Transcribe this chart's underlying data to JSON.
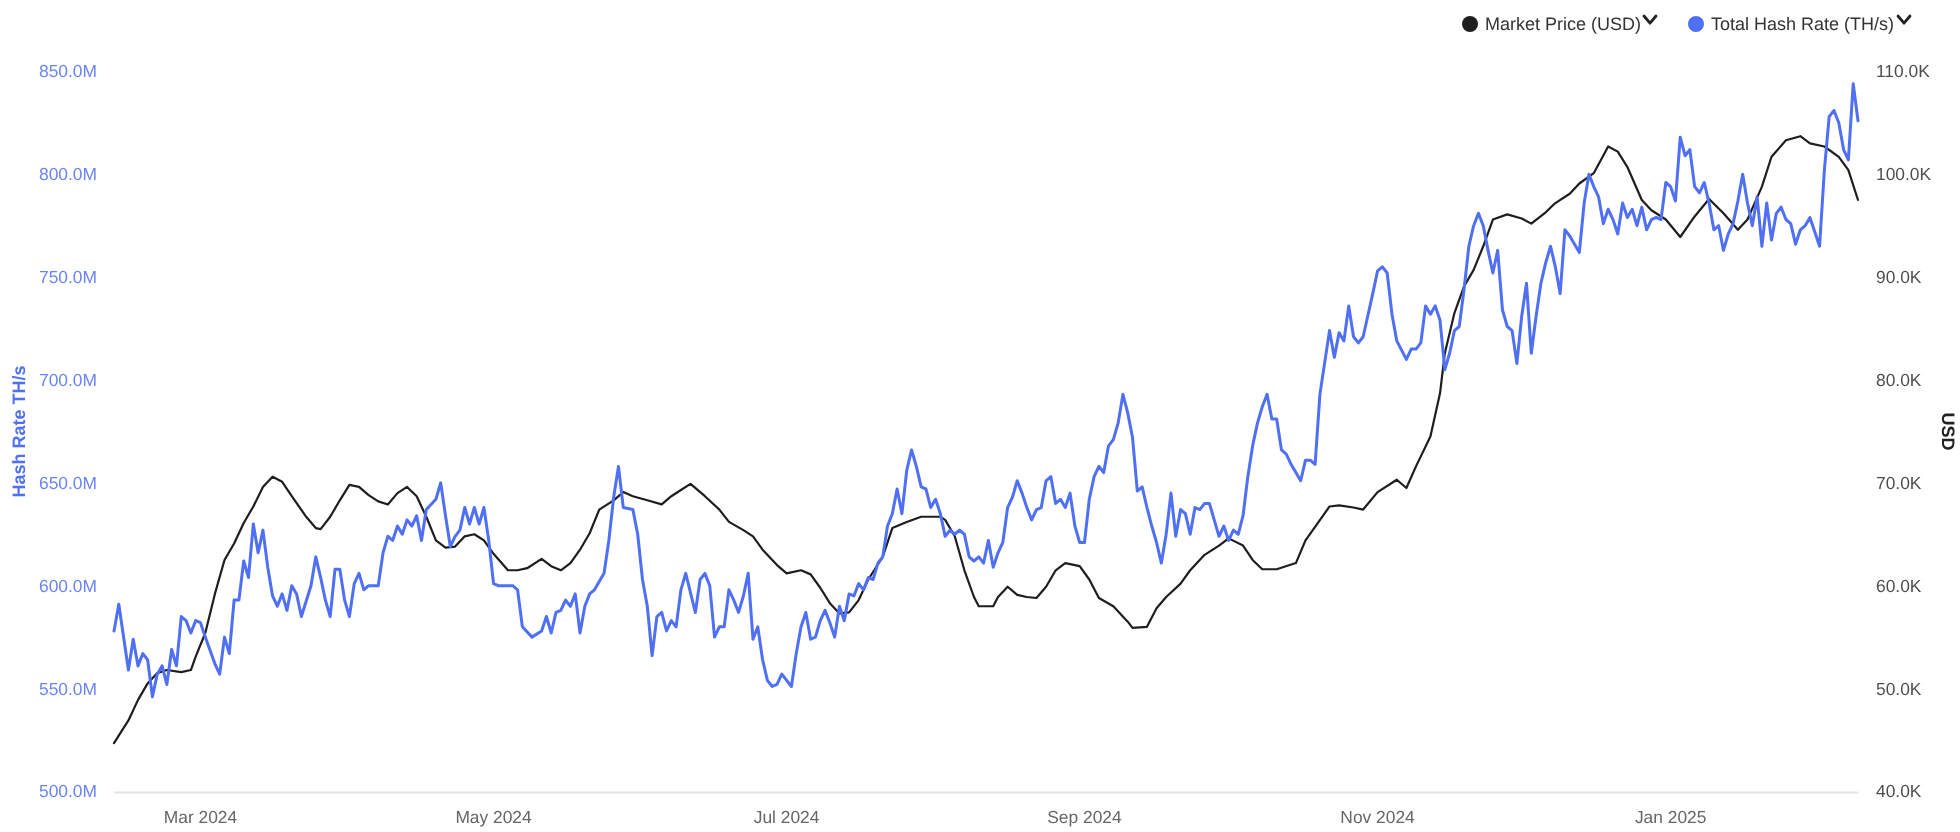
{
  "chart_data": {
    "type": "line",
    "ylabel": "Hash Rate TH/s",
    "y2label": "USD",
    "legend": "top right",
    "xlim": [
      "2024-02-12",
      "2025-02-09"
    ],
    "xticks": [
      {
        "value": "2024-03-01",
        "label": "Mar 2024"
      },
      {
        "value": "2024-05-01",
        "label": "May 2024"
      },
      {
        "value": "2024-07-01",
        "label": "Jul 2024"
      },
      {
        "value": "2024-09-01",
        "label": "Sep 2024"
      },
      {
        "value": "2024-11-01",
        "label": "Nov 2024"
      },
      {
        "value": "2025-01-01",
        "label": "Jan 2025"
      }
    ],
    "ylim": [
      500000000,
      850000000
    ],
    "yticks": [
      {
        "value": 500000000,
        "label": "500.0M"
      },
      {
        "value": 550000000,
        "label": "550.0M"
      },
      {
        "value": 600000000,
        "label": "600.0M"
      },
      {
        "value": 650000000,
        "label": "650.0M"
      },
      {
        "value": 700000000,
        "label": "700.0M"
      },
      {
        "value": 750000000,
        "label": "750.0M"
      },
      {
        "value": 800000000,
        "label": "800.0M"
      },
      {
        "value": 850000000,
        "label": "850.0M"
      }
    ],
    "y2lim": [
      40000,
      110000
    ],
    "y2ticks": [
      {
        "value": 40000,
        "label": "40.0K"
      },
      {
        "value": 50000,
        "label": "50.0K"
      },
      {
        "value": 60000,
        "label": "60.0K"
      },
      {
        "value": 70000,
        "label": "70.0K"
      },
      {
        "value": 80000,
        "label": "80.0K"
      },
      {
        "value": 90000,
        "label": "90.0K"
      },
      {
        "value": 100000,
        "label": "100.0K"
      },
      {
        "value": 110000,
        "label": "110.0K"
      }
    ],
    "series": [
      {
        "name": "Market Price (USD)",
        "color": "#1e1e1e",
        "axis": "y2",
        "x": [
          "2024-02-12",
          "2024-02-15",
          "2024-02-17",
          "2024-02-19",
          "2024-02-21",
          "2024-02-23",
          "2024-02-26",
          "2024-02-28",
          "2024-02-29",
          "2024-03-02",
          "2024-03-04",
          "2024-03-06",
          "2024-03-08",
          "2024-03-10",
          "2024-03-12",
          "2024-03-14",
          "2024-03-16",
          "2024-03-18",
          "2024-03-20",
          "2024-03-23",
          "2024-03-25",
          "2024-03-26",
          "2024-03-28",
          "2024-03-30",
          "2024-04-01",
          "2024-04-03",
          "2024-04-05",
          "2024-04-07",
          "2024-04-09",
          "2024-04-11",
          "2024-04-13",
          "2024-04-15",
          "2024-04-17",
          "2024-04-19",
          "2024-04-21",
          "2024-04-23",
          "2024-04-25",
          "2024-04-27",
          "2024-04-29",
          "2024-05-01",
          "2024-05-04",
          "2024-05-06",
          "2024-05-08",
          "2024-05-11",
          "2024-05-13",
          "2024-05-15",
          "2024-05-17",
          "2024-05-19",
          "2024-05-21",
          "2024-05-23",
          "2024-05-26",
          "2024-05-28",
          "2024-05-30",
          "2024-06-02",
          "2024-06-05",
          "2024-06-07",
          "2024-06-09",
          "2024-06-11",
          "2024-06-14",
          "2024-06-17",
          "2024-06-19",
          "2024-06-22",
          "2024-06-24",
          "2024-06-26",
          "2024-06-29",
          "2024-07-01",
          "2024-07-04",
          "2024-07-06",
          "2024-07-08",
          "2024-07-10",
          "2024-07-12",
          "2024-07-14",
          "2024-07-16",
          "2024-07-18",
          "2024-07-21",
          "2024-07-23",
          "2024-07-26",
          "2024-07-29",
          "2024-08-02",
          "2024-08-03",
          "2024-08-05",
          "2024-08-07",
          "2024-08-09",
          "2024-08-10",
          "2024-08-13",
          "2024-08-14",
          "2024-08-16",
          "2024-08-18",
          "2024-08-20",
          "2024-08-22",
          "2024-08-24",
          "2024-08-26",
          "2024-08-28",
          "2024-08-31",
          "2024-09-02",
          "2024-09-04",
          "2024-09-07",
          "2024-09-10",
          "2024-09-11",
          "2024-09-14",
          "2024-09-16",
          "2024-09-18",
          "2024-09-21",
          "2024-09-23",
          "2024-09-26",
          "2024-09-29",
          "2024-10-01",
          "2024-10-04",
          "2024-10-06",
          "2024-10-08",
          "2024-10-11",
          "2024-10-15",
          "2024-10-17",
          "2024-10-22",
          "2024-10-24",
          "2024-10-27",
          "2024-10-29",
          "2024-11-01",
          "2024-11-05",
          "2024-11-07",
          "2024-11-09",
          "2024-11-12",
          "2024-11-14",
          "2024-11-15",
          "2024-11-17",
          "2024-11-19",
          "2024-11-21",
          "2024-11-23",
          "2024-11-25",
          "2024-11-28",
          "2024-12-01",
          "2024-12-03",
          "2024-12-06",
          "2024-12-08",
          "2024-12-11",
          "2024-12-13",
          "2024-12-16",
          "2024-12-19",
          "2024-12-21",
          "2024-12-23",
          "2024-12-26",
          "2024-12-28",
          "2024-12-31",
          "2025-01-03",
          "2025-01-06",
          "2025-01-09",
          "2025-01-12",
          "2025-01-15",
          "2025-01-17",
          "2025-01-20",
          "2025-01-22",
          "2025-01-25",
          "2025-01-28",
          "2025-01-30",
          "2025-02-02",
          "2025-02-05",
          "2025-02-07",
          "2025-02-09"
        ],
        "values": [
          44700,
          46900,
          48900,
          50500,
          51500,
          51800,
          51600,
          51800,
          53100,
          55400,
          59200,
          62500,
          64100,
          66100,
          67700,
          69600,
          70600,
          70100,
          68700,
          66700,
          65600,
          65500,
          66700,
          68300,
          69800,
          69600,
          68800,
          68200,
          67900,
          69000,
          69600,
          68700,
          66700,
          64400,
          63700,
          63800,
          64800,
          65000,
          64400,
          63100,
          61500,
          61500,
          61700,
          62600,
          61900,
          61500,
          62200,
          63500,
          65100,
          67400,
          68300,
          69100,
          68700,
          68300,
          67900,
          68700,
          69300,
          69900,
          68700,
          67400,
          66200,
          65400,
          64800,
          63500,
          62000,
          61200,
          61500,
          61100,
          59800,
          58300,
          57300,
          57400,
          58600,
          60600,
          62800,
          65600,
          66200,
          66700,
          66700,
          66400,
          64800,
          61500,
          58900,
          58000,
          58000,
          58900,
          59900,
          59100,
          58900,
          58800,
          59900,
          61500,
          62200,
          61900,
          60600,
          58800,
          58000,
          56500,
          55900,
          56000,
          57800,
          58900,
          60200,
          61500,
          63000,
          63900,
          64600,
          63900,
          62500,
          61600,
          61600,
          62200,
          64400,
          67700,
          67800,
          67600,
          67400,
          69100,
          70300,
          69500,
          71600,
          74500,
          78700,
          82600,
          86500,
          89100,
          90700,
          93000,
          95600,
          96100,
          95700,
          95200,
          96300,
          97200,
          98100,
          99100,
          100100,
          102700,
          102200,
          100700,
          97500,
          96500,
          95600,
          93900,
          95900,
          97600,
          96200,
          94600,
          95600,
          98800,
          101700,
          103300,
          103700,
          103000,
          102700,
          101700,
          100400,
          97500
        ]
      },
      {
        "name": "Total Hash Rate (TH/s)",
        "color": "#4f6ff5",
        "x": [
          "2024-02-12",
          "2024-02-13",
          "2024-02-15",
          "2024-02-16",
          "2024-02-17",
          "2024-02-18",
          "2024-02-19",
          "2024-02-20",
          "2024-02-21",
          "2024-02-22",
          "2024-02-23",
          "2024-02-24",
          "2024-02-25",
          "2024-02-26",
          "2024-02-27",
          "2024-02-28",
          "2024-02-29",
          "2024-03-01",
          "2024-03-02",
          "2024-03-04",
          "2024-03-05",
          "2024-03-06",
          "2024-03-07",
          "2024-03-08",
          "2024-03-09",
          "2024-03-10",
          "2024-03-11",
          "2024-03-12",
          "2024-03-13",
          "2024-03-14",
          "2024-03-15",
          "2024-03-16",
          "2024-03-17",
          "2024-03-18",
          "2024-03-19",
          "2024-03-20",
          "2024-03-21",
          "2024-03-22",
          "2024-03-24",
          "2024-03-25",
          "2024-03-26",
          "2024-03-27",
          "2024-03-28",
          "2024-03-29",
          "2024-03-30",
          "2024-03-31",
          "2024-04-01",
          "2024-04-02",
          "2024-04-03",
          "2024-04-04",
          "2024-04-05",
          "2024-04-07",
          "2024-04-08",
          "2024-04-09",
          "2024-04-10",
          "2024-04-11",
          "2024-04-12",
          "2024-04-13",
          "2024-04-14",
          "2024-04-15",
          "2024-04-16",
          "2024-04-17",
          "2024-04-19",
          "2024-04-20",
          "2024-04-21",
          "2024-04-22",
          "2024-04-23",
          "2024-04-24",
          "2024-04-25",
          "2024-04-26",
          "2024-04-27",
          "2024-04-28",
          "2024-04-29",
          "2024-04-30",
          "2024-05-01",
          "2024-05-02",
          "2024-05-05",
          "2024-05-06",
          "2024-05-07",
          "2024-05-09",
          "2024-05-11",
          "2024-05-12",
          "2024-05-13",
          "2024-05-14",
          "2024-05-15",
          "2024-05-16",
          "2024-05-17",
          "2024-05-18",
          "2024-05-19",
          "2024-05-20",
          "2024-05-21",
          "2024-05-22",
          "2024-05-24",
          "2024-05-25",
          "2024-05-26",
          "2024-05-27",
          "2024-05-28",
          "2024-05-30",
          "2024-05-31",
          "2024-06-01",
          "2024-06-02",
          "2024-06-03",
          "2024-06-04",
          "2024-06-05",
          "2024-06-06",
          "2024-06-07",
          "2024-06-08",
          "2024-06-09",
          "2024-06-10",
          "2024-06-12",
          "2024-06-13",
          "2024-06-14",
          "2024-06-15",
          "2024-06-16",
          "2024-06-17",
          "2024-06-18",
          "2024-06-19",
          "2024-06-20",
          "2024-06-21",
          "2024-06-22",
          "2024-06-23",
          "2024-06-24",
          "2024-06-25",
          "2024-06-26",
          "2024-06-27",
          "2024-06-28",
          "2024-06-29",
          "2024-06-30",
          "2024-07-02",
          "2024-07-03",
          "2024-07-04",
          "2024-07-05",
          "2024-07-06",
          "2024-07-07",
          "2024-07-08",
          "2024-07-09",
          "2024-07-10",
          "2024-07-11",
          "2024-07-12",
          "2024-07-13",
          "2024-07-14",
          "2024-07-15",
          "2024-07-16",
          "2024-07-17",
          "2024-07-18",
          "2024-07-19",
          "2024-07-20",
          "2024-07-21",
          "2024-07-22",
          "2024-07-23",
          "2024-07-24",
          "2024-07-25",
          "2024-07-26",
          "2024-07-27",
          "2024-07-28",
          "2024-07-29",
          "2024-07-30",
          "2024-07-31",
          "2024-08-01",
          "2024-08-02",
          "2024-08-03",
          "2024-08-04",
          "2024-08-05",
          "2024-08-06",
          "2024-08-07",
          "2024-08-08",
          "2024-08-09",
          "2024-08-10",
          "2024-08-11",
          "2024-08-12",
          "2024-08-13",
          "2024-08-14",
          "2024-08-15",
          "2024-08-16",
          "2024-08-17",
          "2024-08-18",
          "2024-08-19",
          "2024-08-20",
          "2024-08-21",
          "2024-08-22",
          "2024-08-23",
          "2024-08-24",
          "2024-08-25",
          "2024-08-26",
          "2024-08-27",
          "2024-08-28",
          "2024-08-29",
          "2024-08-30",
          "2024-08-31",
          "2024-09-01",
          "2024-09-02",
          "2024-09-03",
          "2024-09-04",
          "2024-09-05",
          "2024-09-06",
          "2024-09-07",
          "2024-09-08",
          "2024-09-09",
          "2024-09-10",
          "2024-09-11",
          "2024-09-12",
          "2024-09-13",
          "2024-09-14",
          "2024-09-15",
          "2024-09-16",
          "2024-09-17",
          "2024-09-18",
          "2024-09-19",
          "2024-09-20",
          "2024-09-21",
          "2024-09-22",
          "2024-09-23",
          "2024-09-24",
          "2024-09-25",
          "2024-09-26",
          "2024-09-27",
          "2024-09-28",
          "2024-09-29",
          "2024-09-30",
          "2024-10-01",
          "2024-10-02",
          "2024-10-03",
          "2024-10-04",
          "2024-10-05",
          "2024-10-06",
          "2024-10-07",
          "2024-10-08",
          "2024-10-09",
          "2024-10-10",
          "2024-10-11",
          "2024-10-12",
          "2024-10-13",
          "2024-10-14",
          "2024-10-15",
          "2024-10-16",
          "2024-10-17",
          "2024-10-18",
          "2024-10-19",
          "2024-10-20",
          "2024-10-22",
          "2024-10-23",
          "2024-10-24",
          "2024-10-25",
          "2024-10-26",
          "2024-10-27",
          "2024-10-28",
          "2024-10-29",
          "2024-10-31",
          "2024-11-01",
          "2024-11-02",
          "2024-11-03",
          "2024-11-04",
          "2024-11-05",
          "2024-11-07",
          "2024-11-08",
          "2024-11-09",
          "2024-11-10",
          "2024-11-11",
          "2024-11-12",
          "2024-11-13",
          "2024-11-14",
          "2024-11-15",
          "2024-11-16",
          "2024-11-17",
          "2024-11-18",
          "2024-11-19",
          "2024-11-20",
          "2024-11-21",
          "2024-11-22",
          "2024-11-23",
          "2024-11-24",
          "2024-11-25",
          "2024-11-26",
          "2024-11-27",
          "2024-11-28",
          "2024-11-29",
          "2024-11-30",
          "2024-12-01",
          "2024-12-02",
          "2024-12-03",
          "2024-12-04",
          "2024-12-05",
          "2024-12-06",
          "2024-12-07",
          "2024-12-08",
          "2024-12-09",
          "2024-12-10",
          "2024-12-11",
          "2024-12-12",
          "2024-12-13",
          "2024-12-14",
          "2024-12-15",
          "2024-12-16",
          "2024-12-17",
          "2024-12-18",
          "2024-12-19",
          "2024-12-20",
          "2024-12-21",
          "2024-12-22",
          "2024-12-23",
          "2024-12-24",
          "2024-12-25",
          "2024-12-26",
          "2024-12-27",
          "2024-12-28",
          "2024-12-29",
          "2024-12-30",
          "2024-12-31",
          "2025-01-01",
          "2025-01-02",
          "2025-01-03",
          "2025-01-04",
          "2025-01-05",
          "2025-01-06",
          "2025-01-07",
          "2025-01-08",
          "2025-01-09",
          "2025-01-10",
          "2025-01-11",
          "2025-01-12",
          "2025-01-13",
          "2025-01-14",
          "2025-01-15",
          "2025-01-16",
          "2025-01-17",
          "2025-01-18",
          "2025-01-19",
          "2025-01-20",
          "2025-01-21",
          "2025-01-22",
          "2025-01-23",
          "2025-01-24",
          "2025-01-25",
          "2025-01-26",
          "2025-01-27",
          "2025-01-28",
          "2025-01-29",
          "2025-01-30",
          "2025-02-01",
          "2025-02-02",
          "2025-02-03",
          "2025-02-04",
          "2025-02-05",
          "2025-02-06",
          "2025-02-07",
          "2025-02-08",
          "2025-02-09"
        ],
        "values": [
          578000000,
          591000000,
          559000000,
          574000000,
          561000000,
          567000000,
          564000000,
          546000000,
          557000000,
          561000000,
          552000000,
          569000000,
          561000000,
          585000000,
          583000000,
          577000000,
          583000000,
          582000000,
          575000000,
          562000000,
          557000000,
          575000000,
          567000000,
          593000000,
          593000000,
          612000000,
          604000000,
          630000000,
          616000000,
          627000000,
          609000000,
          595000000,
          590000000,
          596000000,
          588000000,
          600000000,
          596000000,
          585000000,
          600000000,
          614000000,
          604000000,
          593000000,
          585000000,
          608000000,
          608000000,
          593000000,
          585000000,
          601000000,
          606000000,
          598000000,
          600000000,
          600000000,
          616000000,
          624000000,
          622000000,
          629000000,
          625000000,
          632000000,
          629000000,
          634000000,
          622000000,
          637000000,
          642000000,
          650000000,
          634000000,
          619000000,
          624000000,
          627000000,
          638000000,
          630000000,
          638000000,
          630000000,
          638000000,
          622000000,
          601000000,
          600000000,
          600000000,
          598000000,
          580000000,
          575000000,
          578000000,
          585000000,
          577000000,
          587000000,
          588000000,
          593000000,
          590000000,
          596000000,
          577000000,
          590000000,
          596000000,
          598000000,
          606000000,
          622000000,
          643000000,
          658000000,
          638000000,
          637000000,
          625000000,
          603000000,
          590000000,
          566000000,
          585000000,
          587000000,
          578000000,
          583000000,
          580000000,
          598000000,
          606000000,
          587000000,
          603000000,
          606000000,
          600000000,
          575000000,
          580000000,
          580000000,
          598000000,
          593000000,
          587000000,
          595000000,
          606000000,
          574000000,
          580000000,
          564000000,
          554000000,
          551000000,
          552000000,
          557000000,
          551000000,
          567000000,
          580000000,
          587000000,
          574000000,
          575000000,
          583000000,
          588000000,
          582000000,
          575000000,
          590000000,
          583000000,
          596000000,
          595000000,
          601000000,
          598000000,
          604000000,
          603000000,
          611000000,
          614000000,
          629000000,
          635000000,
          647000000,
          635000000,
          656000000,
          666000000,
          658000000,
          648000000,
          647000000,
          638000000,
          642000000,
          635000000,
          624000000,
          627000000,
          625000000,
          627000000,
          625000000,
          614000000,
          612000000,
          614000000,
          611000000,
          622000000,
          609000000,
          616000000,
          621000000,
          638000000,
          643000000,
          651000000,
          645000000,
          638000000,
          632000000,
          637000000,
          638000000,
          651000000,
          653000000,
          640000000,
          642000000,
          638000000,
          645000000,
          629000000,
          621000000,
          621000000,
          642000000,
          653000000,
          658000000,
          655000000,
          668000000,
          671000000,
          679000000,
          693000000,
          684000000,
          672000000,
          646000000,
          648000000,
          638000000,
          629000000,
          621000000,
          611000000,
          625000000,
          645000000,
          624000000,
          637000000,
          635000000,
          625000000,
          638000000,
          637000000,
          640000000,
          640000000,
          632000000,
          624000000,
          629000000,
          622000000,
          627000000,
          625000000,
          634000000,
          653000000,
          668000000,
          679000000,
          687000000,
          693000000,
          681000000,
          681000000,
          666000000,
          664000000,
          659000000,
          655000000,
          651000000,
          661000000,
          661000000,
          659000000,
          693000000,
          724000000,
          711000000,
          723000000,
          719000000,
          736000000,
          721000000,
          718000000,
          721000000,
          742000000,
          753000000,
          755000000,
          752000000,
          732000000,
          719000000,
          710000000,
          715000000,
          715000000,
          718000000,
          736000000,
          732000000,
          736000000,
          729000000,
          705000000,
          713000000,
          724000000,
          726000000,
          744000000,
          765000000,
          775000000,
          781000000,
          775000000,
          763000000,
          752000000,
          763000000,
          734000000,
          726000000,
          724000000,
          708000000,
          731000000,
          747000000,
          713000000,
          731000000,
          747000000,
          757000000,
          765000000,
          755000000,
          742000000,
          773000000,
          770000000,
          766000000,
          762000000,
          786000000,
          800000000,
          794000000,
          789000000,
          776000000,
          783000000,
          778000000,
          771000000,
          786000000,
          779000000,
          783000000,
          775000000,
          784000000,
          773000000,
          778000000,
          779000000,
          778000000,
          796000000,
          794000000,
          787000000,
          818000000,
          809000000,
          812000000,
          794000000,
          791000000,
          796000000,
          786000000,
          773000000,
          775000000,
          763000000,
          771000000,
          776000000,
          787000000,
          800000000,
          786000000,
          775000000,
          789000000,
          765000000,
          786000000,
          768000000,
          781000000,
          784000000,
          778000000,
          776000000,
          766000000,
          773000000,
          775000000,
          779000000,
          765000000,
          802000000,
          828000000,
          831000000,
          825000000,
          812000000,
          807000000,
          844000000,
          826000000
        ]
      }
    ]
  }
}
